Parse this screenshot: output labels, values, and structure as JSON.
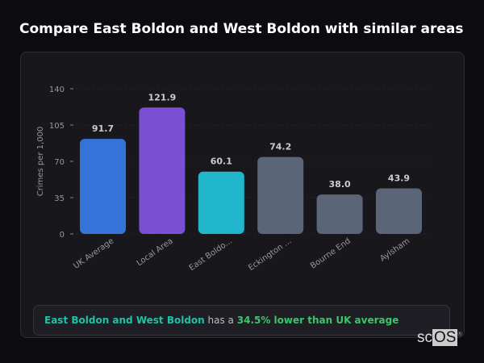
{
  "title": "Compare East Boldon and West Boldon with similar areas",
  "chart_data": {
    "type": "bar",
    "categories": [
      "UK Average",
      "Local Area",
      "East Boldo...",
      "Eckington ...",
      "Bourne End",
      "Aylsham"
    ],
    "values": [
      91.7,
      121.9,
      60.1,
      74.2,
      38.0,
      43.9
    ],
    "value_labels": [
      "91.7",
      "121.9",
      "60.1",
      "74.2",
      "38.0",
      "43.9"
    ],
    "colors": [
      "#3474d8",
      "#7b4fd4",
      "#21b6cc",
      "#5a6578",
      "#5a6578",
      "#5a6578"
    ],
    "ylabel": "Crimes per 1,000",
    "ylim": [
      0,
      140
    ],
    "yticks": [
      0,
      35,
      70,
      105,
      140
    ],
    "grid": true
  },
  "summary": {
    "place": "East Boldon and West Boldon",
    "mid": "has a",
    "stat": "34.5% lower than UK average"
  },
  "watermark": {
    "sc": "sc",
    "os": "OS",
    "mark": "®"
  }
}
